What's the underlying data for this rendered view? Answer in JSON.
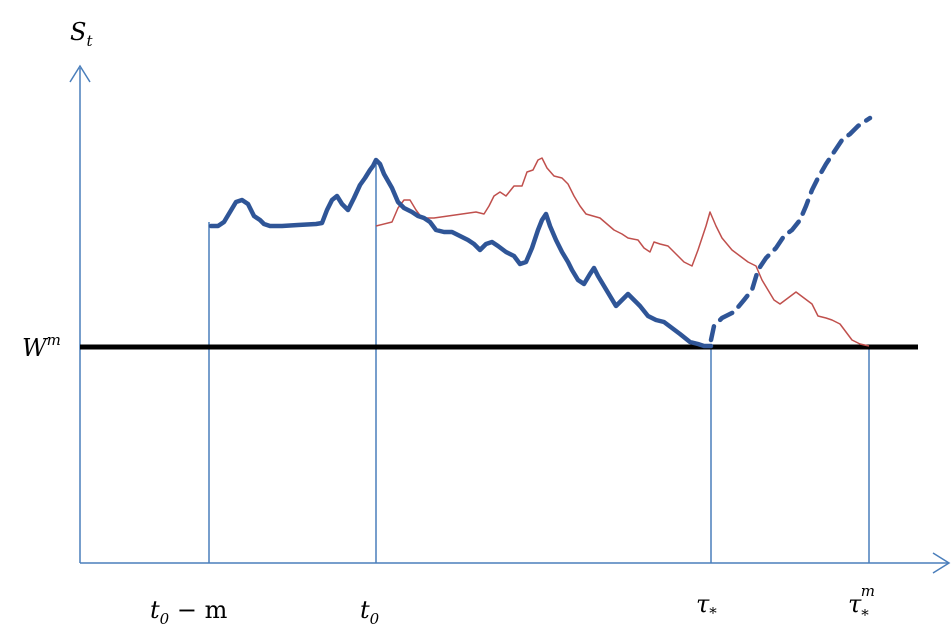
{
  "diagram": {
    "y_axis_label": {
      "main": "S",
      "sub": "t"
    },
    "barrier_label": {
      "main": "W",
      "sup": "m"
    },
    "x_labels": [
      {
        "main": "t",
        "sub": "0",
        "rest": " − m"
      },
      {
        "main": "t",
        "sub": "0",
        "rest": ""
      },
      {
        "main": "τ",
        "sub": "*",
        "rest": ""
      },
      {
        "main": "τ",
        "sub": "*",
        "sup": "m",
        "rest": ""
      }
    ],
    "colors": {
      "axis": "#4a7ebb",
      "main_path": "#2f5597",
      "alt_path": "#c0504d",
      "barrier": "#000000"
    }
  }
}
